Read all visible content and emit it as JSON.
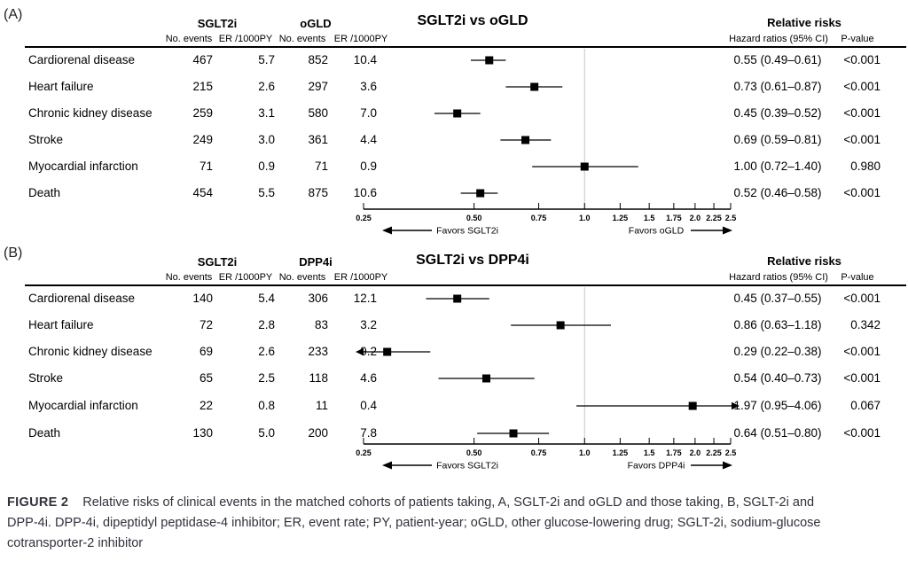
{
  "chart_data": [
    {
      "type": "forest",
      "panel": "(A)",
      "title": "SGLT2i vs oGLD",
      "group1": {
        "name": "SGLT2i",
        "col1": "No. events",
        "col2": "ER /1000PY"
      },
      "group2": {
        "name": "oGLD",
        "col1": "No. events",
        "col2": "ER /1000PY"
      },
      "right_header": {
        "title": "Relative risks",
        "col1": "Hazard ratios (95% CI)",
        "col2": "P-value"
      },
      "favors_left": "Favors SGLT2i",
      "favors_right": "Favors oGLD",
      "xscale": "log",
      "xlim": [
        0.25,
        2.5
      ],
      "reference_line": 1.0,
      "x_ticks": [
        0.25,
        0.5,
        0.75,
        1.0,
        1.25,
        1.5,
        1.75,
        2.0,
        2.25,
        2.5
      ],
      "x_tick_labels": [
        "0.25",
        "0.50",
        "0.75",
        "1.0",
        "1.25",
        "1.5",
        "1.75",
        "2.0",
        "2.25",
        "2.5"
      ],
      "rows": [
        {
          "outcome": "Cardiorenal disease",
          "g1_events": "467",
          "g1_er": "5.7",
          "g2_events": "852",
          "g2_er": "10.4",
          "hr": 0.55,
          "ci_low": 0.49,
          "ci_high": 0.61,
          "hr_ci": "0.55 (0.49–0.61)",
          "p": "<0.001"
        },
        {
          "outcome": "Heart failure",
          "g1_events": "215",
          "g1_er": "2.6",
          "g2_events": "297",
          "g2_er": "3.6",
          "hr": 0.73,
          "ci_low": 0.61,
          "ci_high": 0.87,
          "hr_ci": "0.73 (0.61–0.87)",
          "p": "<0.001"
        },
        {
          "outcome": "Chronic kidney disease",
          "g1_events": "259",
          "g1_er": "3.1",
          "g2_events": "580",
          "g2_er": "7.0",
          "hr": 0.45,
          "ci_low": 0.39,
          "ci_high": 0.52,
          "hr_ci": "0.45 (0.39–0.52)",
          "p": "<0.001"
        },
        {
          "outcome": "Stroke",
          "g1_events": "249",
          "g1_er": "3.0",
          "g2_events": "361",
          "g2_er": "4.4",
          "hr": 0.69,
          "ci_low": 0.59,
          "ci_high": 0.81,
          "hr_ci": "0.69 (0.59–0.81)",
          "p": "<0.001"
        },
        {
          "outcome": "Myocardial infarction",
          "g1_events": "71",
          "g1_er": "0.9",
          "g2_events": "71",
          "g2_er": "0.9",
          "hr": 1.0,
          "ci_low": 0.72,
          "ci_high": 1.4,
          "hr_ci": "1.00 (0.72–1.40)",
          "p": "0.980"
        },
        {
          "outcome": "Death",
          "g1_events": "454",
          "g1_er": "5.5",
          "g2_events": "875",
          "g2_er": "10.6",
          "hr": 0.52,
          "ci_low": 0.46,
          "ci_high": 0.58,
          "hr_ci": "0.52 (0.46–0.58)",
          "p": "<0.001"
        }
      ]
    },
    {
      "type": "forest",
      "panel": "(B)",
      "title": "SGLT2i vs DPP4i",
      "group1": {
        "name": "SGLT2i",
        "col1": "No. events",
        "col2": "ER /1000PY"
      },
      "group2": {
        "name": "DPP4i",
        "col1": "No. events",
        "col2": "ER /1000PY"
      },
      "right_header": {
        "title": "Relative risks",
        "col1": "Hazard ratios (95% CI)",
        "col2": "P-value"
      },
      "favors_left": "Favors SGLT2i",
      "favors_right": "Favors DPP4i",
      "xscale": "log",
      "xlim": [
        0.25,
        2.5
      ],
      "reference_line": 1.0,
      "x_ticks": [
        0.25,
        0.5,
        0.75,
        1.0,
        1.25,
        1.5,
        1.75,
        2.0,
        2.25,
        2.5
      ],
      "x_tick_labels": [
        "0.25",
        "0.50",
        "0.75",
        "1.0",
        "1.25",
        "1.5",
        "1.75",
        "2.0",
        "2.25",
        "2.5"
      ],
      "rows": [
        {
          "outcome": "Cardiorenal disease",
          "g1_events": "140",
          "g1_er": "5.4",
          "g2_events": "306",
          "g2_er": "12.1",
          "hr": 0.45,
          "ci_low": 0.37,
          "ci_high": 0.55,
          "hr_ci": "0.45 (0.37–0.55)",
          "p": "<0.001"
        },
        {
          "outcome": "Heart failure",
          "g1_events": "72",
          "g1_er": "2.8",
          "g2_events": "83",
          "g2_er": "3.2",
          "hr": 0.86,
          "ci_low": 0.63,
          "ci_high": 1.18,
          "hr_ci": "0.86 (0.63–1.18)",
          "p": "0.342"
        },
        {
          "outcome": "Chronic kidney disease",
          "g1_events": "69",
          "g1_er": "2.6",
          "g2_events": "233",
          "g2_er": "9.2",
          "hr": 0.29,
          "ci_low": 0.22,
          "ci_high": 0.38,
          "hr_ci": "0.29 (0.22–0.38)",
          "p": "<0.001"
        },
        {
          "outcome": "Stroke",
          "g1_events": "65",
          "g1_er": "2.5",
          "g2_events": "118",
          "g2_er": "4.6",
          "hr": 0.54,
          "ci_low": 0.4,
          "ci_high": 0.73,
          "hr_ci": "0.54 (0.40–0.73)",
          "p": "<0.001"
        },
        {
          "outcome": "Myocardial infarction",
          "g1_events": "22",
          "g1_er": "0.8",
          "g2_events": "11",
          "g2_er": "0.4",
          "hr": 1.97,
          "ci_low": 0.95,
          "ci_high": 4.06,
          "hr_ci": "1.97 (0.95–4.06)",
          "p": "0.067"
        },
        {
          "outcome": "Death",
          "g1_events": "130",
          "g1_er": "5.0",
          "g2_events": "200",
          "g2_er": "7.8",
          "hr": 0.64,
          "ci_low": 0.51,
          "ci_high": 0.8,
          "hr_ci": "0.64 (0.51–0.80)",
          "p": "<0.001"
        }
      ]
    }
  ],
  "caption": {
    "label": "FIGURE 2",
    "lines": [
      "Relative risks of clinical events in the matched cohorts of patients taking, A, SGLT-2i and oGLD and those taking, B, SGLT-2i and",
      "DPP-4i. DPP-4i, dipeptidyl peptidase-4 inhibitor; ER, event rate; PY, patient-year; oGLD, other glucose-lowering drug; SGLT-2i, sodium-glucose",
      "cotransporter-2 inhibitor"
    ]
  }
}
